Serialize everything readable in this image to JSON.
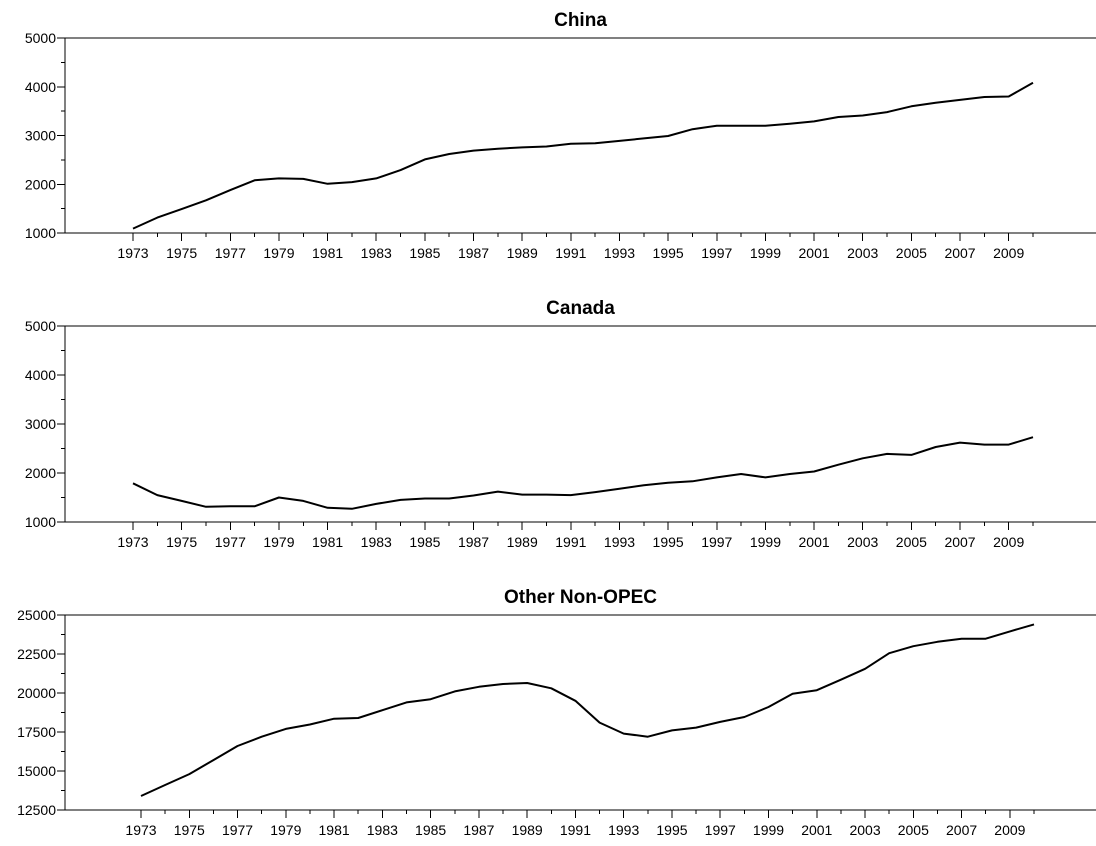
{
  "chart_data": [
    {
      "type": "line",
      "title": "China",
      "xlabel": "",
      "ylabel": "",
      "ylim": [
        1000,
        5000
      ],
      "y_ticks": [
        "1000",
        "2000",
        "3000",
        "4000",
        "5000"
      ],
      "x_tick_labels": [
        "1973",
        "1975",
        "1977",
        "1979",
        "1981",
        "1983",
        "1985",
        "1987",
        "1989",
        "1991",
        "1993",
        "1995",
        "1997",
        "1999",
        "2001",
        "2003",
        "2005",
        "2007",
        "2009"
      ],
      "grid": false,
      "x": [
        1973,
        1974,
        1975,
        1976,
        1977,
        1978,
        1979,
        1980,
        1981,
        1982,
        1983,
        1984,
        1985,
        1986,
        1987,
        1988,
        1989,
        1990,
        1991,
        1992,
        1993,
        1994,
        1995,
        1996,
        1997,
        1998,
        1999,
        2000,
        2001,
        2002,
        2003,
        2004,
        2005,
        2006,
        2007,
        2008,
        2009,
        2010
      ],
      "series": [
        {
          "values": [
            1090,
            1315,
            1490,
            1670,
            1880,
            2080,
            2120,
            2110,
            2010,
            2045,
            2120,
            2290,
            2510,
            2620,
            2690,
            2730,
            2755,
            2775,
            2830,
            2840,
            2890,
            2940,
            2990,
            3130,
            3200,
            3200,
            3200,
            3240,
            3290,
            3380,
            3410,
            3480,
            3600,
            3670,
            3730,
            3790,
            3800,
            4080
          ]
        }
      ]
    },
    {
      "type": "line",
      "title": "Canada",
      "xlabel": "",
      "ylabel": "",
      "ylim": [
        1000,
        5000
      ],
      "y_ticks": [
        "1000",
        "2000",
        "3000",
        "4000",
        "5000"
      ],
      "x_tick_labels": [
        "1973",
        "1975",
        "1977",
        "1979",
        "1981",
        "1983",
        "1985",
        "1987",
        "1989",
        "1991",
        "1993",
        "1995",
        "1997",
        "1999",
        "2001",
        "2003",
        "2005",
        "2007",
        "2009"
      ],
      "grid": false,
      "x": [
        1973,
        1974,
        1975,
        1976,
        1977,
        1978,
        1979,
        1980,
        1981,
        1982,
        1983,
        1984,
        1985,
        1986,
        1987,
        1988,
        1989,
        1990,
        1991,
        1992,
        1993,
        1994,
        1995,
        1996,
        1997,
        1998,
        1999,
        2000,
        2001,
        2002,
        2003,
        2004,
        2005,
        2006,
        2007,
        2008,
        2009,
        2010
      ],
      "series": [
        {
          "values": [
            1790,
            1550,
            1430,
            1310,
            1320,
            1320,
            1500,
            1430,
            1290,
            1270,
            1370,
            1450,
            1480,
            1480,
            1540,
            1620,
            1560,
            1560,
            1550,
            1610,
            1680,
            1750,
            1800,
            1830,
            1910,
            1980,
            1910,
            1980,
            2030,
            2170,
            2300,
            2390,
            2370,
            2530,
            2620,
            2580,
            2580,
            2730
          ]
        }
      ]
    },
    {
      "type": "line",
      "title": "Other Non-OPEC",
      "xlabel": "",
      "ylabel": "",
      "ylim": [
        12500,
        25000
      ],
      "y_ticks": [
        "12500",
        "15000",
        "17500",
        "20000",
        "22500",
        "25000"
      ],
      "x_tick_labels": [
        "1973",
        "1975",
        "1977",
        "1979",
        "1981",
        "1983",
        "1985",
        "1987",
        "1989",
        "1991",
        "1993",
        "1995",
        "1997",
        "1999",
        "2001",
        "2003",
        "2005",
        "2007",
        "2009"
      ],
      "grid": false,
      "x": [
        1973,
        1974,
        1975,
        1976,
        1977,
        1978,
        1979,
        1980,
        1981,
        1982,
        1983,
        1984,
        1985,
        1986,
        1987,
        1988,
        1989,
        1990,
        1991,
        1992,
        1993,
        1994,
        1995,
        1996,
        1997,
        1998,
        1999,
        2000,
        2001,
        2002,
        2003,
        2004,
        2005,
        2006,
        2007,
        2008,
        2009,
        2010
      ],
      "series": [
        {
          "values": [
            13400,
            14100,
            14800,
            15700,
            16600,
            17200,
            17700,
            17980,
            18350,
            18400,
            18900,
            19400,
            19600,
            20100,
            20400,
            20580,
            20640,
            20300,
            19500,
            18100,
            17400,
            17200,
            17600,
            17780,
            18150,
            18460,
            19100,
            19950,
            20180,
            20850,
            21550,
            22550,
            23000,
            23280,
            23480,
            23480,
            23950,
            24400
          ]
        }
      ]
    }
  ]
}
